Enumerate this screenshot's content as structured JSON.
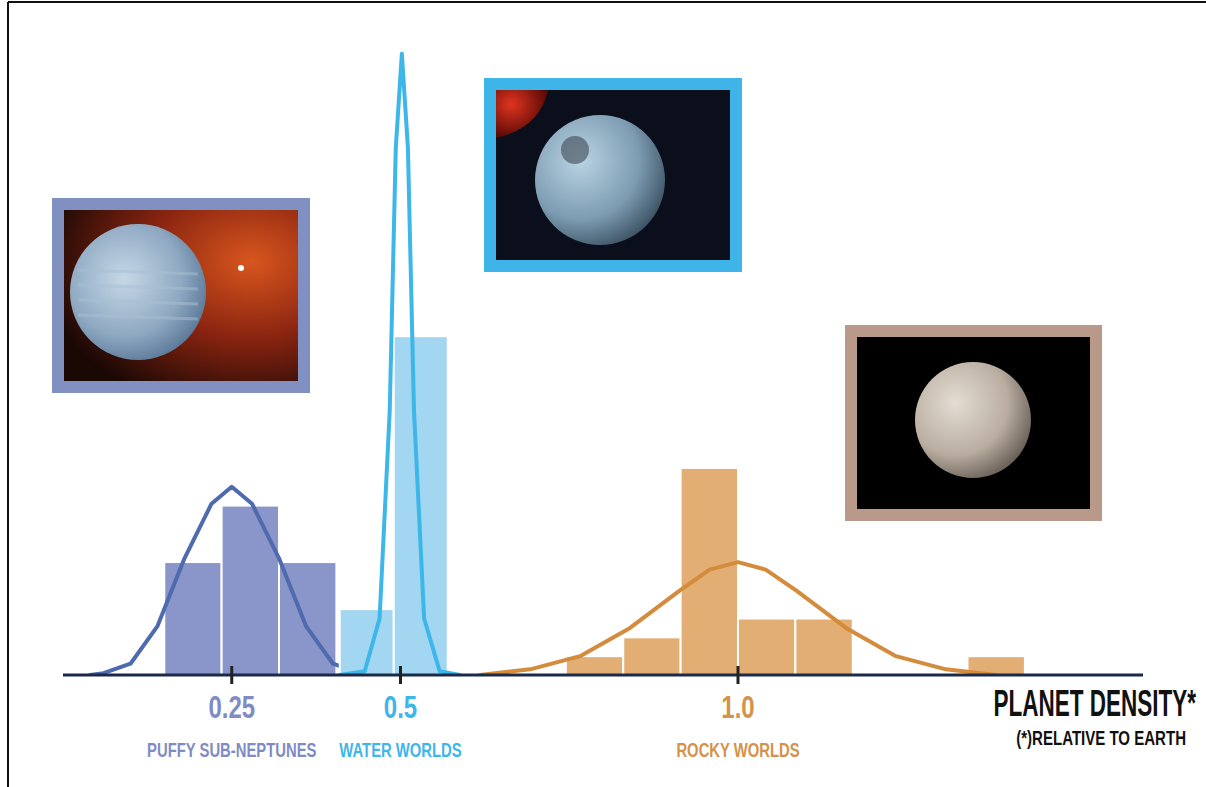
{
  "chart_data": {
    "type": "histogram",
    "xlabel": "PLANET DENSITY*",
    "xlabel_note": "(*)RELATIVE TO EARTH",
    "xlim": [
      0,
      1.6
    ],
    "xticks": [
      0.25,
      0.5,
      {
        "value": 1,
        "label": "1.0"
      }
    ],
    "ylim": [
      0,
      34
    ],
    "tick_labels": "x",
    "grid": false,
    "annotations": [
      {
        "text": "PUFFY SUB-NEPTUNES",
        "x": 0.25,
        "color": "#7f8cc4"
      },
      {
        "text": "WATER WORLDS",
        "x": 0.5,
        "color": "#3fb6ea"
      },
      {
        "text": "ROCKY WORLDS",
        "x": 1,
        "color": "#d4924a"
      }
    ],
    "series": [
      {
        "type": "histogram",
        "color": "#8a96c9",
        "bins": [
          0.15,
          0.235,
          0.32,
          0.405
        ],
        "values": [
          6,
          9,
          6
        ]
      },
      {
        "type": "line",
        "color": "#4e6bb0",
        "x": [
          0.04,
          0.06,
          0.1,
          0.14,
          0.18,
          0.22,
          0.25,
          0.28,
          0.32,
          0.36,
          0.4,
          0.44,
          0.46
        ],
        "values": [
          0,
          0.1,
          0.6,
          2.6,
          6.2,
          9.1,
          10,
          9.1,
          6.2,
          2.6,
          0.6,
          0.1,
          0
        ]
      },
      {
        "type": "histogram",
        "color": "#a3d6f1",
        "bins": [
          0.41,
          0.49,
          0.57
        ],
        "values": [
          3.5,
          18
        ]
      },
      {
        "type": "line",
        "color": "#3db6ea",
        "x": [
          0.41,
          0.447,
          0.469,
          0.484,
          0.493,
          0.502,
          0.511,
          0.52,
          0.535,
          0.558,
          0.588
        ],
        "values": [
          0,
          0.2,
          3,
          14,
          28,
          33,
          28,
          14,
          3,
          0.2,
          0
        ]
      },
      {
        "type": "histogram",
        "color": "#e2ae74",
        "bins": [
          0.745,
          0.83,
          0.915,
          1.0,
          1.085,
          1.17,
          1.255,
          1.34,
          1.425
        ],
        "values": [
          1,
          2,
          11,
          3,
          3,
          0,
          0,
          1
        ]
      },
      {
        "type": "line",
        "color": "#d48b3c",
        "x": [
          0.618,
          0.692,
          0.766,
          0.84,
          0.914,
          0.958,
          1.0,
          1.041,
          1.086,
          1.16,
          1.234,
          1.308,
          1.382
        ],
        "values": [
          0,
          0.3,
          1,
          2.5,
          4.5,
          5.6,
          6,
          5.6,
          4.5,
          2.5,
          1,
          0.3,
          0
        ]
      }
    ]
  }
}
